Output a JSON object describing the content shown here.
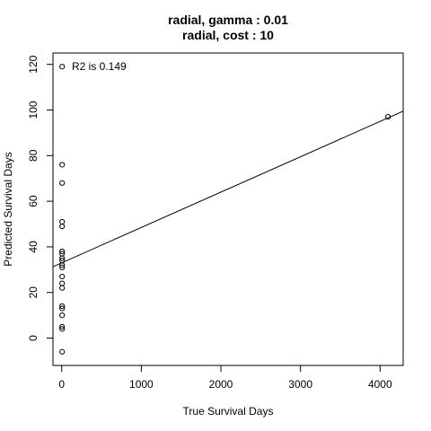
{
  "chart_data": {
    "type": "scatter",
    "title": "radial, gamma : 0.01",
    "subtitle": "radial, cost : 10",
    "xlabel": "True Survival Days",
    "ylabel": "Predicted Survival Days",
    "xlim": [
      -110,
      4290
    ],
    "ylim": [
      -12,
      125
    ],
    "xticks": [
      0,
      1000,
      2000,
      3000,
      4000
    ],
    "yticks": [
      0,
      20,
      40,
      60,
      80,
      100,
      120
    ],
    "annotation": "R2 is 0.149",
    "points": [
      {
        "x": 5,
        "y": 119
      },
      {
        "x": 5,
        "y": 76
      },
      {
        "x": 5,
        "y": 68
      },
      {
        "x": 5,
        "y": 51
      },
      {
        "x": 5,
        "y": 49
      },
      {
        "x": 5,
        "y": 38
      },
      {
        "x": 5,
        "y": 37
      },
      {
        "x": 5,
        "y": 35
      },
      {
        "x": 5,
        "y": 34
      },
      {
        "x": 5,
        "y": 32
      },
      {
        "x": 5,
        "y": 31
      },
      {
        "x": 5,
        "y": 27
      },
      {
        "x": 5,
        "y": 24
      },
      {
        "x": 5,
        "y": 22
      },
      {
        "x": 5,
        "y": 14
      },
      {
        "x": 5,
        "y": 13
      },
      {
        "x": 5,
        "y": 10
      },
      {
        "x": 5,
        "y": 5
      },
      {
        "x": 5,
        "y": 4
      },
      {
        "x": 5,
        "y": -6
      },
      {
        "x": 4100,
        "y": 97
      }
    ],
    "fit_line": {
      "intercept": 33.0,
      "slope": 0.0155
    },
    "grid": false,
    "legend": "none"
  }
}
